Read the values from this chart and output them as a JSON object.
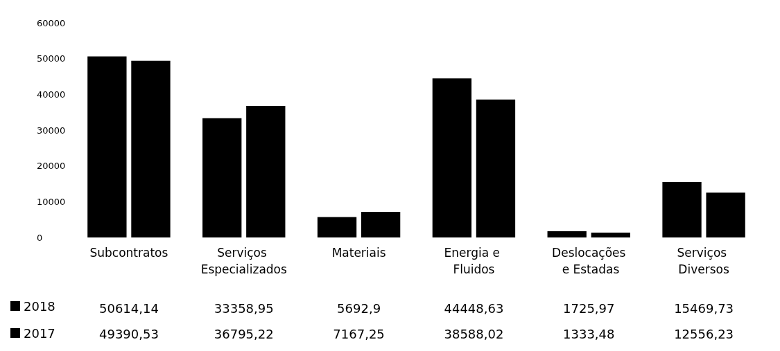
{
  "chart_data": {
    "type": "bar",
    "categories": [
      "Subcontratos",
      "Serviços Especializados",
      "Materiais",
      "Energia e Fluidos",
      "Deslocações e Estadas",
      "Serviços Diversos"
    ],
    "series": [
      {
        "name": "2018",
        "color": "#000000",
        "values": [
          50614.14,
          33358.95,
          5692.9,
          44448.63,
          1725.97,
          15469.73
        ],
        "value_labels": [
          "50614,14",
          "33358,95",
          "5692,9",
          "44448,63",
          "1725,97",
          "15469,73"
        ]
      },
      {
        "name": "2017",
        "color": "#000000",
        "values": [
          49390.53,
          36795.22,
          7167.25,
          38588.02,
          1333.48,
          12556.23
        ],
        "value_labels": [
          "49390,53",
          "36795,22",
          "7167,25",
          "38588,02",
          "1333,48",
          "12556,23"
        ]
      }
    ],
    "ylim": [
      0,
      60000
    ],
    "yticks": [
      0,
      10000,
      20000,
      30000,
      40000,
      50000,
      60000
    ],
    "grid": false,
    "legend": "bottom",
    "data_labels": true
  }
}
